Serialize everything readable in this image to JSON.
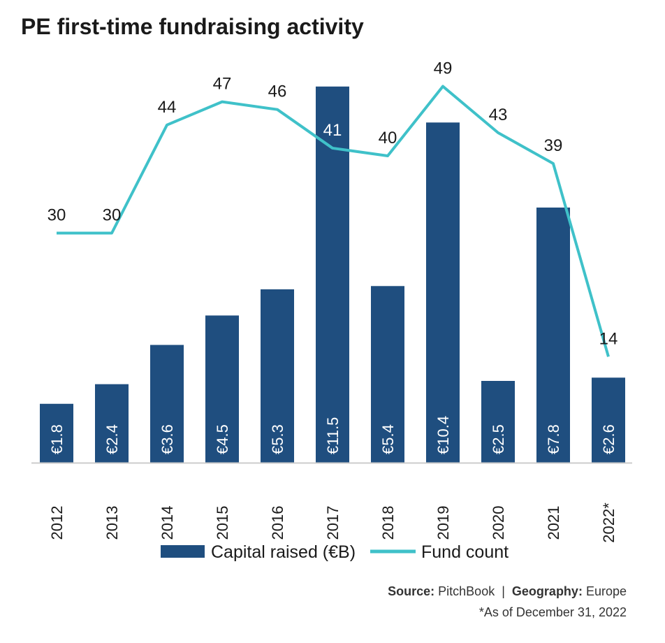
{
  "chart_data": {
    "type": "bar+line",
    "title": "PE first-time fundraising activity",
    "categories": [
      "2012",
      "2013",
      "2014",
      "2015",
      "2016",
      "2017",
      "2018",
      "2019",
      "2020",
      "2021",
      "2022*"
    ],
    "series": [
      {
        "name": "Capital raised (€B)",
        "type": "bar",
        "values": [
          1.8,
          2.4,
          3.6,
          4.5,
          5.3,
          11.5,
          5.4,
          10.4,
          2.5,
          7.8,
          2.6
        ],
        "labels": [
          "€1.8",
          "€2.4",
          "€3.6",
          "€4.5",
          "€5.3",
          "€11.5",
          "€5.4",
          "€10.4",
          "€2.5",
          "€7.8",
          "€2.6"
        ],
        "color": "#1f4e7f"
      },
      {
        "name": "Fund count",
        "type": "line",
        "values": [
          30,
          30,
          44,
          47,
          46,
          41,
          40,
          49,
          43,
          39,
          14
        ],
        "color": "#3fc1c9"
      }
    ],
    "legend": "bottom",
    "grid": false
  },
  "footer": {
    "source_label": "Source:",
    "source_value": "PitchBook",
    "separator": "|",
    "geo_label": "Geography:",
    "geo_value": "Europe",
    "note": "*As of December 31, 2022"
  }
}
